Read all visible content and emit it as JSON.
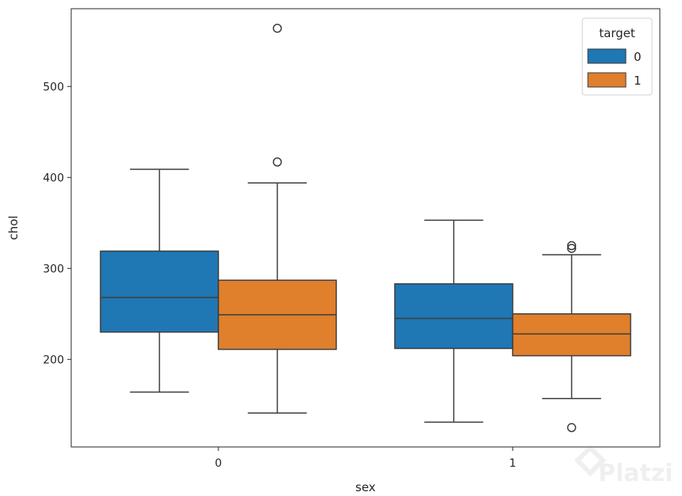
{
  "chart_data": {
    "type": "boxplot",
    "title": "",
    "xlabel": "sex",
    "ylabel": "chol",
    "categories": [
      "0",
      "1"
    ],
    "yticks": [
      200,
      300,
      400,
      500
    ],
    "ylim": [
      103.7,
      585.5
    ],
    "grid": false,
    "legend": {
      "title": "target",
      "placement": "top-right",
      "entries": [
        "0",
        "1"
      ]
    },
    "series": [
      {
        "name": "0",
        "color": "#1f77b4",
        "boxes": [
          {
            "category": "0",
            "whisker_low": 164,
            "q1": 230,
            "median": 268,
            "q3": 319,
            "whisker_high": 409,
            "outliers": []
          },
          {
            "category": "1",
            "whisker_low": 131,
            "q1": 212,
            "median": 245,
            "q3": 283,
            "whisker_high": 353,
            "outliers": []
          }
        ]
      },
      {
        "name": "1",
        "color": "#e07f2c",
        "boxes": [
          {
            "category": "0",
            "whisker_low": 141,
            "q1": 211,
            "median": 249,
            "q3": 287,
            "whisker_high": 394,
            "outliers": [
              417,
              564
            ]
          },
          {
            "category": "1",
            "whisker_low": 157,
            "q1": 204,
            "median": 228,
            "q3": 250,
            "whisker_high": 315,
            "outliers": [
              125,
              322,
              325
            ]
          }
        ]
      }
    ]
  },
  "watermark": {
    "text": "Platzi"
  }
}
